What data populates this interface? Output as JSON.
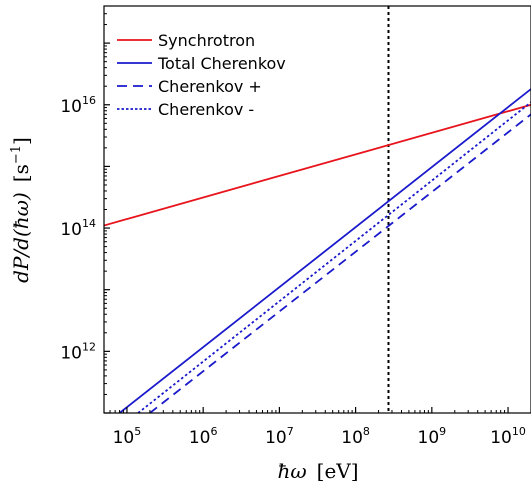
{
  "chart_data": {
    "type": "line",
    "title": "",
    "xlabel": "ħω",
    "xunit": "[eV]",
    "ylabel": "dP/d(ħω)",
    "yunit": "[s",
    "yunit_exp": "−1",
    "yunit_close": "]",
    "xscale": "log",
    "yscale": "log",
    "xlim": [
      50000,
      20000000000
    ],
    "ylim": [
      100000000000,
      400000000000000000
    ],
    "grid": false,
    "legend_position": "top-left",
    "x_ticks": [
      {
        "base": "10",
        "exp": "5",
        "value": 100000
      },
      {
        "base": "10",
        "exp": "6",
        "value": 1000000
      },
      {
        "base": "10",
        "exp": "7",
        "value": 10000000
      },
      {
        "base": "10",
        "exp": "8",
        "value": 100000000
      },
      {
        "base": "10",
        "exp": "9",
        "value": 1000000000
      },
      {
        "base": "10",
        "exp": "10",
        "value": 10000000000
      }
    ],
    "y_ticks": [
      {
        "base": "10",
        "exp": "12",
        "value": 1000000000000
      },
      {
        "base": "10",
        "exp": "14",
        "value": 100000000000000
      },
      {
        "base": "10",
        "exp": "16",
        "value": 10000000000000000
      }
    ],
    "vertical_line": {
      "x": 270000000,
      "color": "#000000",
      "style": "dotted"
    },
    "series": [
      {
        "name": "Synchrotron",
        "color": "#e8141c",
        "style": "solid",
        "x": [
          50000,
          20000000000
        ],
        "y": [
          110000000000000,
          10000000000000000
        ]
      },
      {
        "name": "Total Cherenkov",
        "color": "#1a1acc",
        "style": "solid",
        "x": [
          80000,
          20000000000
        ],
        "y": [
          100000000000,
          18000000000000000
        ]
      },
      {
        "name": "Cherenkov +",
        "color": "#1a1acc",
        "style": "dashed",
        "x": [
          200000,
          20000000000
        ],
        "y": [
          100000000000,
          7000000000000000
        ]
      },
      {
        "name": "Cherenkov -",
        "color": "#1a1acc",
        "style": "dotted",
        "x": [
          140000,
          20000000000
        ],
        "y": [
          100000000000,
          11000000000000000
        ]
      }
    ]
  }
}
